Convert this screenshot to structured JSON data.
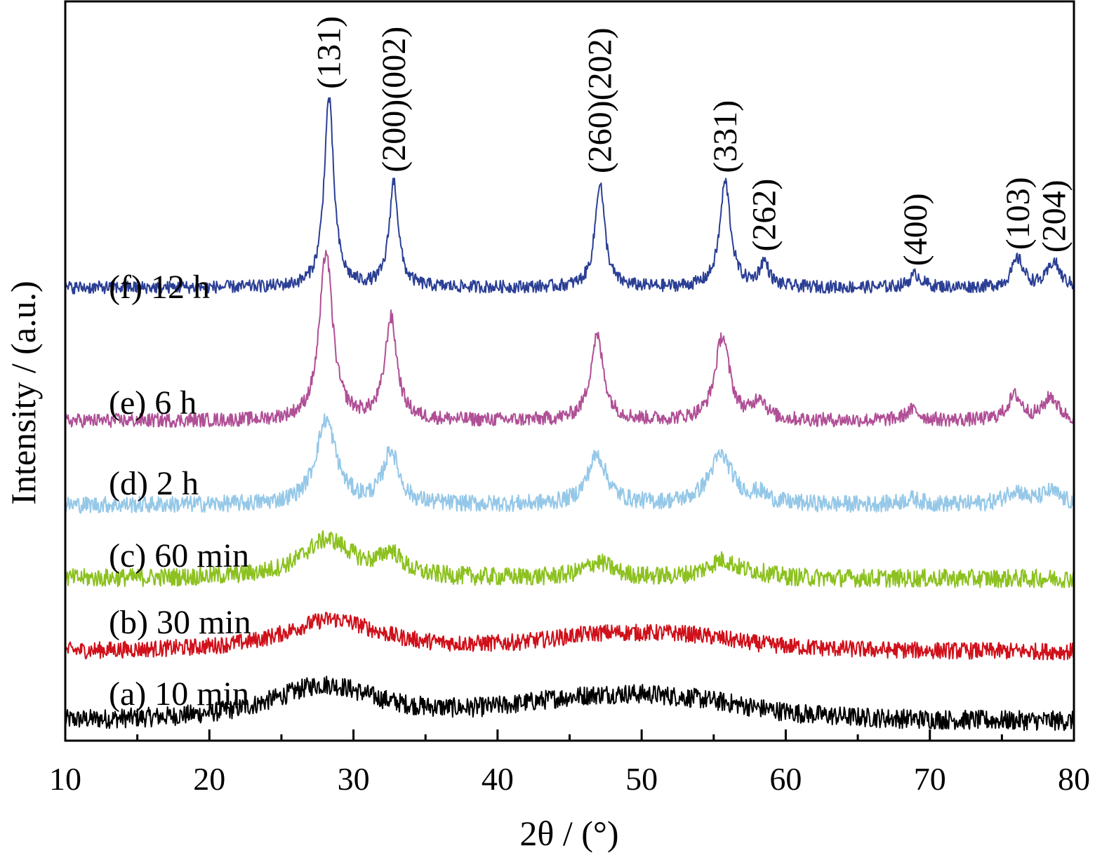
{
  "chart_data": {
    "type": "line",
    "xlabel": "2θ / (°)",
    "ylabel": "Intensity / (a.u.)",
    "xlim": [
      10,
      80
    ],
    "xticks": [
      10,
      20,
      30,
      40,
      50,
      60,
      70,
      80
    ],
    "xminor_ticks": [
      15,
      25,
      35,
      45,
      55,
      65,
      75
    ],
    "grid": false,
    "y_tick_labels": false,
    "series": [
      {
        "name": "(a) 10 min",
        "color": "#000000",
        "baseline": 0.3,
        "noise": 0.14,
        "peaks": [
          [
            28,
            0.5,
            4.5
          ],
          [
            45,
            0.18,
            6
          ],
          [
            50,
            0.22,
            6
          ],
          [
            55,
            0.12,
            5
          ]
        ]
      },
      {
        "name": "(b) 30 min",
        "color": "#d0101a",
        "baseline": 1.3,
        "noise": 0.12,
        "peaks": [
          [
            28.5,
            0.45,
            4.0
          ],
          [
            47,
            0.18,
            5
          ],
          [
            53,
            0.18,
            5
          ]
        ]
      },
      {
        "name": "(c) 60 min",
        "color": "#8cc11f",
        "baseline": 2.35,
        "noise": 0.13,
        "peaks": [
          [
            28.2,
            0.55,
            2.2
          ],
          [
            32.6,
            0.3,
            0.9
          ],
          [
            47,
            0.22,
            1.2
          ],
          [
            55.6,
            0.25,
            1.3
          ],
          [
            58,
            0.05,
            1.0
          ]
        ]
      },
      {
        "name": "(d) 2 h",
        "color": "#95c8e8",
        "baseline": 3.4,
        "noise": 0.12,
        "peaks": [
          [
            28.1,
            1.2,
            0.85
          ],
          [
            32.6,
            0.75,
            0.65
          ],
          [
            46.9,
            0.7,
            0.8
          ],
          [
            55.5,
            0.7,
            1.0
          ],
          [
            58.2,
            0.12,
            0.7
          ],
          [
            68.7,
            0.08,
            0.8
          ],
          [
            75.9,
            0.2,
            0.8
          ],
          [
            78.4,
            0.18,
            0.8
          ]
        ]
      },
      {
        "name": "(e) 6 h",
        "color": "#b04f96",
        "baseline": 4.6,
        "noise": 0.1,
        "peaks": [
          [
            28.1,
            2.4,
            0.55
          ],
          [
            32.6,
            1.45,
            0.5
          ],
          [
            46.9,
            1.2,
            0.55
          ],
          [
            55.6,
            1.2,
            0.6
          ],
          [
            58.2,
            0.3,
            0.5
          ],
          [
            68.8,
            0.15,
            0.6
          ],
          [
            75.9,
            0.35,
            0.6
          ],
          [
            78.4,
            0.33,
            0.6
          ]
        ]
      },
      {
        "name": "(f) 12 h",
        "color": "#2b3f95",
        "baseline": 6.5,
        "noise": 0.09,
        "peaks": [
          [
            28.3,
            2.7,
            0.4
          ],
          [
            32.8,
            1.5,
            0.38
          ],
          [
            47.1,
            1.5,
            0.4
          ],
          [
            55.8,
            1.5,
            0.45
          ],
          [
            58.5,
            0.35,
            0.4
          ],
          [
            69.0,
            0.18,
            0.5
          ],
          [
            76.1,
            0.4,
            0.5
          ],
          [
            78.6,
            0.36,
            0.5
          ]
        ]
      }
    ],
    "peak_labels": [
      {
        "text": "(131)",
        "x": 28.3
      },
      {
        "text": "(200)(002)",
        "x": 32.8
      },
      {
        "text": "(260)(202)",
        "x": 47.1
      },
      {
        "text": "(331)",
        "x": 55.8
      },
      {
        "text": "(262)",
        "x": 58.5
      },
      {
        "text": "(400)",
        "x": 69.0
      },
      {
        "text": "(103)",
        "x": 76.1
      },
      {
        "text": "(204)",
        "x": 78.6
      }
    ]
  }
}
